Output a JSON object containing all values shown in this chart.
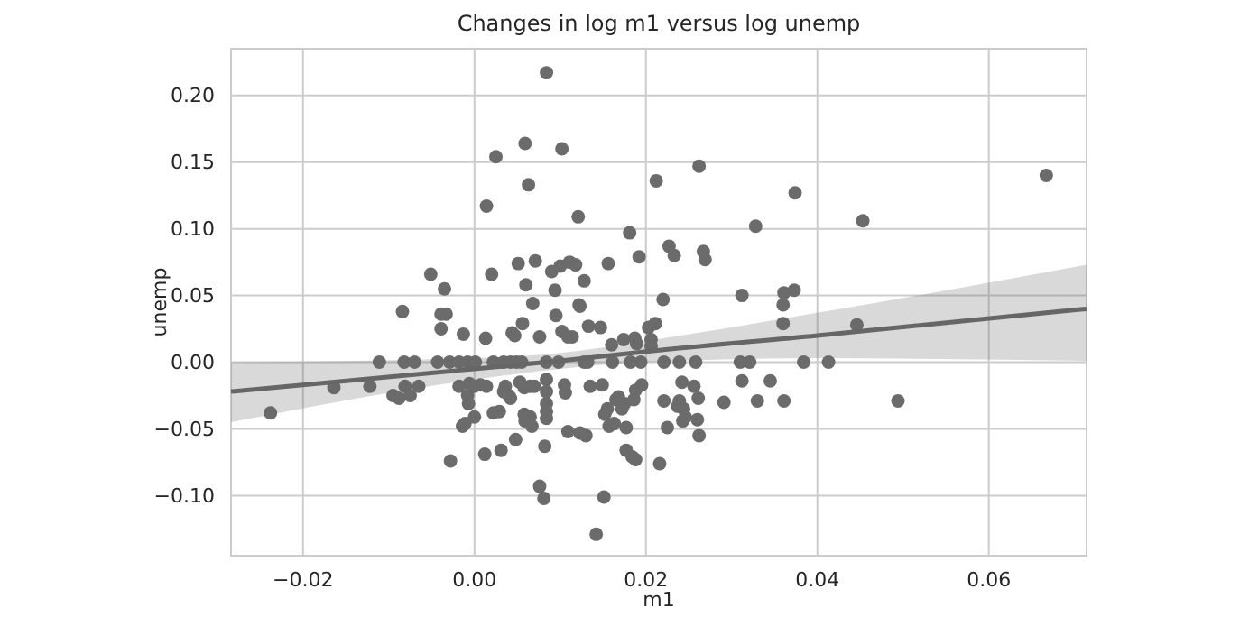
{
  "chart_data": {
    "type": "scatter",
    "title": "Changes in log m1 versus log unemp",
    "xlabel": "m1",
    "ylabel": "unemp",
    "xlim": [
      -0.0284,
      0.0714
    ],
    "ylim": [
      -0.145,
      0.235
    ],
    "xticks": [
      {
        "value": -0.02,
        "label": "−0.02"
      },
      {
        "value": 0,
        "label": "0.00"
      },
      {
        "value": 0.02,
        "label": "0.02"
      },
      {
        "value": 0.04,
        "label": "0.04"
      },
      {
        "value": 0.06,
        "label": "0.06"
      }
    ],
    "yticks": [
      {
        "value": -0.1,
        "label": "−0.10"
      },
      {
        "value": -0.05,
        "label": "−0.05"
      },
      {
        "value": 0,
        "label": "0.00"
      },
      {
        "value": 0.05,
        "label": "0.05"
      },
      {
        "value": 0.1,
        "label": "0.10"
      },
      {
        "value": 0.15,
        "label": "0.15"
      },
      {
        "value": 0.2,
        "label": "0.20"
      }
    ],
    "grid": true,
    "series": [
      {
        "marker": "circle",
        "color": "#6b6b6b",
        "x": [
          0.0025,
          0.0059,
          0.0063,
          0.0014,
          -0.0051,
          -0.0035,
          0.002,
          0.0051,
          0.0071,
          0.006,
          0.0068,
          0.0084,
          0.0102,
          0.0121,
          0.0262,
          0.0212,
          0.0374,
          0.0328,
          0.0453,
          0.0181,
          0.0227,
          0.0233,
          0.0267,
          0.0269,
          0.0192,
          0.0156,
          0.0111,
          0.0118,
          0.01,
          0.009,
          0.0128,
          0.0094,
          0.0122,
          0.022,
          0.0312,
          0.0361,
          0.0373,
          0.036,
          0.0667,
          -0.0084,
          -0.0039,
          -0.0033,
          -0.0039,
          -0.0013,
          0.0013,
          0.0044,
          0.0047,
          0.0056,
          0.0076,
          -0.0111,
          -0.0082,
          -0.007,
          -0.0043,
          -0.0029,
          -0.0018,
          -0.0008,
          0.0001,
          0.0022,
          0.0034,
          0.0042,
          0.0049,
          0.0055,
          -0.0164,
          -0.0122,
          -0.0238,
          -0.0095,
          -0.0088,
          -0.0075,
          -0.0081,
          -0.0065,
          -0.0018,
          -0.0008,
          -0.0006,
          0,
          0.0007,
          0.0014,
          -0.0007,
          0,
          -0.0011,
          -0.0014,
          0.0022,
          0.0029,
          0.0012,
          0.0031,
          0.0048,
          -0.0028,
          0.0034,
          0.0042,
          0.0036,
          0.004,
          0.0053,
          0.0058,
          0.0065,
          0.007,
          0.0058,
          0.0065,
          0.0059,
          0.0067,
          0.0082,
          0.0076,
          0.0081,
          0.036,
          0.0095,
          0.0123,
          0.0102,
          0.0109,
          0.0114,
          0.0133,
          0.0147,
          0.016,
          0.0174,
          0.0187,
          0.0189,
          0.0203,
          0.0211,
          0.0206,
          0.0206,
          0.0446,
          0.0084,
          0.0098,
          0.0128,
          0.0132,
          0.0161,
          0.0182,
          0.0194,
          0.0221,
          0.0239,
          0.0258,
          0.031,
          0.0321,
          0.0384,
          0.0413,
          0.0084,
          0.0084,
          0.0084,
          0.0084,
          0.0084,
          0.0105,
          0.0106,
          0.0135,
          0.0149,
          0.0155,
          0.0152,
          0.0165,
          0.0168,
          0.0175,
          0.0172,
          0.0188,
          0.0195,
          0.0186,
          0.0157,
          0.0163,
          0.0177,
          0.0109,
          0.0123,
          0.013,
          0.0177,
          0.0184,
          0.0188,
          0.0216,
          0.0225,
          0.0221,
          0.0239,
          0.0237,
          0.0244,
          0.0246,
          0.0243,
          0.0242,
          0.0256,
          0.0261,
          0.026,
          0.0262,
          0.0291,
          0.0312,
          0.033,
          0.0345,
          0.0361,
          0.0494,
          0.0151,
          0.0142
        ],
        "values": [
          0.154,
          0.164,
          0.133,
          0.117,
          0.066,
          0.055,
          0.066,
          0.074,
          0.076,
          0.058,
          0.044,
          0.217,
          0.16,
          0.109,
          0.147,
          0.136,
          0.127,
          0.102,
          0.106,
          0.097,
          0.087,
          0.08,
          0.083,
          0.077,
          0.079,
          0.074,
          0.075,
          0.073,
          0.072,
          0.068,
          0.061,
          0.054,
          0.043,
          0.047,
          0.05,
          0.052,
          0.054,
          0.043,
          0.14,
          0.038,
          0.036,
          0.036,
          0.025,
          0.021,
          0.018,
          0.022,
          0.02,
          0.029,
          0.019,
          0,
          0,
          0,
          0,
          0,
          0,
          0,
          0,
          0,
          0,
          0,
          0,
          0,
          -0.019,
          -0.018,
          -0.038,
          -0.025,
          -0.027,
          -0.025,
          -0.018,
          -0.018,
          -0.018,
          -0.025,
          -0.016,
          -0.018,
          -0.017,
          -0.018,
          -0.031,
          -0.041,
          -0.046,
          -0.048,
          -0.038,
          -0.037,
          -0.069,
          -0.066,
          -0.058,
          -0.074,
          -0.022,
          -0.027,
          -0.018,
          -0.025,
          -0.015,
          -0.019,
          -0.018,
          -0.018,
          -0.039,
          -0.041,
          -0.044,
          -0.048,
          -0.063,
          -0.093,
          -0.102,
          0.029,
          0.035,
          0.042,
          0.023,
          0.019,
          0.019,
          0.027,
          0.026,
          0.013,
          0.017,
          0.018,
          0.014,
          0.026,
          0.029,
          0.017,
          0.012,
          0.028,
          0,
          0,
          0,
          0,
          0,
          0,
          0,
          0,
          0,
          0,
          0,
          0,
          0,
          0,
          -0.013,
          -0.022,
          -0.031,
          -0.037,
          -0.042,
          -0.017,
          -0.023,
          -0.018,
          -0.017,
          -0.035,
          -0.039,
          -0.028,
          -0.026,
          -0.031,
          -0.035,
          -0.021,
          -0.017,
          -0.028,
          -0.048,
          -0.046,
          -0.049,
          -0.052,
          -0.053,
          -0.055,
          -0.066,
          -0.071,
          -0.073,
          -0.076,
          -0.049,
          -0.029,
          -0.029,
          -0.033,
          -0.035,
          -0.041,
          -0.044,
          -0.015,
          -0.018,
          -0.027,
          -0.043,
          -0.055,
          -0.03,
          -0.014,
          -0.029,
          -0.014,
          -0.029,
          -0.029,
          -0.101,
          -0.129
        ]
      },
      {
        "type": "line",
        "color": "#666666",
        "x": [
          -0.0284,
          0,
          0.01,
          0.02,
          0.04,
          0.0714
        ],
        "values": [
          -0.022,
          -0.005,
          0.001,
          0.008,
          0.02,
          0.04
        ],
        "lower": [
          -0.045,
          -0.013,
          -0.005,
          0,
          0.003,
          0.001
        ],
        "upper": [
          0,
          0.003,
          0.007,
          0.016,
          0.037,
          0.073
        ]
      }
    ]
  }
}
